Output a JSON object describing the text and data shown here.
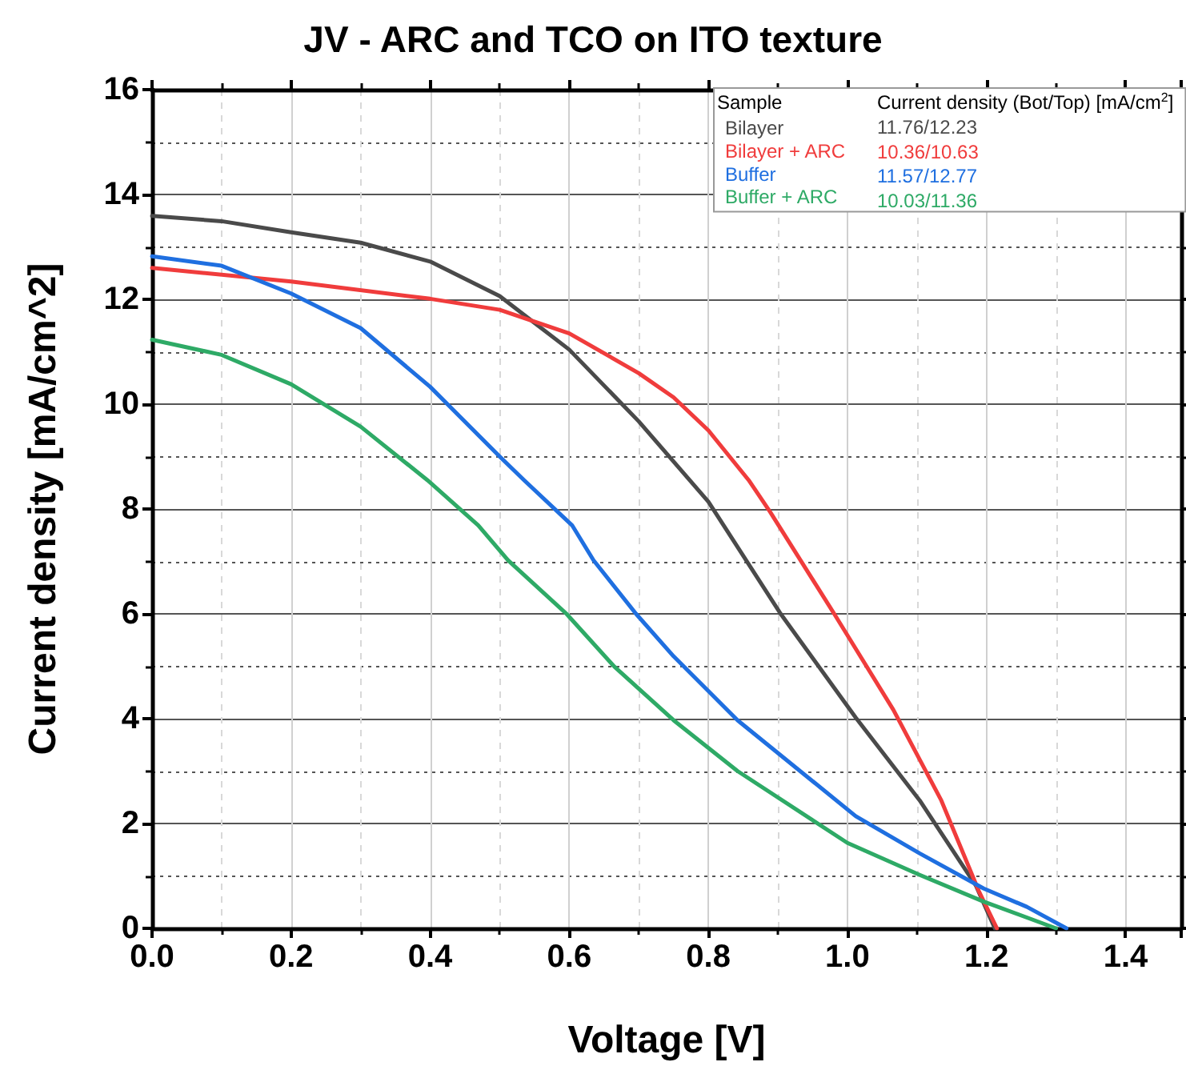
{
  "chart_data": {
    "type": "line",
    "title": "JV - ARC and TCO on ITO texture",
    "xlabel": "Voltage [V]",
    "ylabel": "Current density [mA/cm^2]",
    "legend_title": "Sample",
    "annotations": [
      "Current density (Bot/Top) [mA/cm$^{2}$]",
      "11.76/12.23",
      "10.36/10.63",
      "11.57/12.77",
      "10.03/11.36"
    ],
    "xlim": [
      0,
      1.48
    ],
    "xticks": [
      {
        "value": 0,
        "label": "0.0"
      },
      {
        "value": 0.1,
        "label": null
      },
      {
        "value": 0.2,
        "label": "0.2"
      },
      {
        "value": 0.3,
        "label": null
      },
      {
        "value": 0.4,
        "label": "0.4"
      },
      {
        "value": 0.5,
        "label": null
      },
      {
        "value": 0.6,
        "label": "0.6"
      },
      {
        "value": 0.7,
        "label": null
      },
      {
        "value": 0.8,
        "label": "0.8"
      },
      {
        "value": 0.9,
        "label": null
      },
      {
        "value": 1.0,
        "label": "1.0"
      },
      {
        "value": 1.1,
        "label": null
      },
      {
        "value": 1.2,
        "label": "1.2"
      },
      {
        "value": 1.3,
        "label": null
      },
      {
        "value": 1.4,
        "label": "1.4"
      }
    ],
    "ylim": [
      0,
      16
    ],
    "yticks": [
      0,
      {
        "value": 1,
        "label": null
      },
      2,
      {
        "value": 3,
        "label": null
      },
      4,
      {
        "value": 5,
        "label": null
      },
      6,
      {
        "value": 7,
        "label": null
      },
      8,
      {
        "value": 9,
        "label": null
      },
      10,
      {
        "value": 11,
        "label": null
      },
      12,
      {
        "value": 13,
        "label": null
      },
      14,
      {
        "value": 15,
        "label": null
      },
      16
    ],
    "grid": true,
    "legend": "top right",
    "marker": "none",
    "line_style": "solid",
    "series": [
      {
        "name": "Bilayer",
        "color": "#4a4a4a",
        "x": [
          0,
          0.1,
          0.2,
          0.3,
          0.4,
          0.5,
          0.55,
          0.6,
          0.7,
          0.8,
          0.904,
          1.012,
          1.104,
          1.185,
          1.212
        ],
        "values": [
          13.59,
          13.49,
          13.28,
          13.08,
          12.72,
          12.06,
          11.55,
          11.04,
          9.67,
          8.14,
          6.0,
          4.02,
          2.44,
          0.81,
          0
        ]
      },
      {
        "name": "Bilayer + ARC",
        "color": "#f03c3c",
        "x": [
          0,
          0.2,
          0.4,
          0.5,
          0.6,
          0.7,
          0.75,
          0.8,
          0.858,
          0.889,
          0.981,
          1.066,
          1.135,
          1.189,
          1.215
        ],
        "values": [
          12.6,
          12.34,
          12.01,
          11.8,
          11.35,
          10.59,
          10.13,
          9.5,
          8.55,
          7.94,
          6.0,
          4.17,
          2.44,
          0.71,
          0
        ]
      },
      {
        "name": "Buffer",
        "color": "#1f6fe0",
        "x": [
          0,
          0.1,
          0.2,
          0.3,
          0.4,
          0.5,
          0.535,
          0.604,
          0.635,
          0.696,
          0.75,
          0.842,
          1.012,
          1.104,
          1.196,
          1.258,
          1.315
        ],
        "values": [
          12.82,
          12.64,
          12.11,
          11.45,
          10.33,
          9.0,
          8.55,
          7.69,
          7.02,
          6.0,
          5.19,
          3.97,
          2.14,
          1.43,
          0.76,
          0.41,
          0
        ]
      },
      {
        "name": "Buffer + ARC",
        "color": "#2eaa66",
        "x": [
          0,
          0.1,
          0.2,
          0.3,
          0.396,
          0.469,
          0.512,
          0.596,
          0.665,
          0.75,
          0.842,
          1.0,
          1.104,
          1.196,
          1.3
        ],
        "values": [
          11.23,
          10.94,
          10.38,
          9.57,
          8.55,
          7.69,
          7.02,
          6.0,
          4.99,
          3.97,
          3.0,
          1.63,
          1.02,
          0.51,
          0
        ]
      }
    ]
  }
}
